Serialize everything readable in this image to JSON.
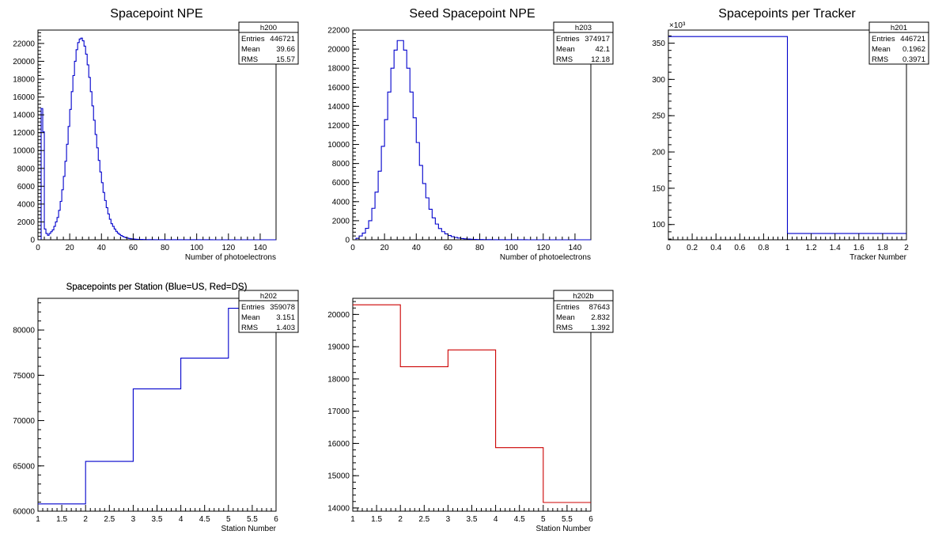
{
  "chart_data": [
    {
      "id": "h200",
      "type": "histogram",
      "title": "Spacepoint NPE",
      "xlabel": "Number of photoelectrons",
      "ylabel": "",
      "xlim": [
        0,
        150
      ],
      "ylim": [
        0,
        23500
      ],
      "xticks": [
        0,
        20,
        40,
        60,
        80,
        100,
        120,
        140
      ],
      "yticks": [
        0,
        2000,
        4000,
        6000,
        8000,
        10000,
        12000,
        14000,
        16000,
        18000,
        20000,
        22000
      ],
      "exponent": "",
      "color": "#0000cc",
      "bins": {
        "edges_start": 0,
        "bin_width": 1,
        "values": [
          0,
          0,
          14700,
          12100,
          1200,
          700,
          500,
          700,
          900,
          1100,
          1500,
          2000,
          2500,
          3300,
          4300,
          5600,
          7100,
          8800,
          10700,
          12700,
          14600,
          16600,
          18400,
          20000,
          21300,
          22100,
          22500,
          22600,
          22300,
          21700,
          20800,
          19600,
          18200,
          16600,
          15000,
          13400,
          11800,
          10300,
          8900,
          7600,
          6400,
          5300,
          4400,
          3600,
          2900,
          2300,
          1800,
          1500,
          1200,
          950,
          750,
          600,
          480,
          380,
          300,
          240,
          190,
          150,
          120,
          100,
          80,
          65,
          55,
          45,
          40,
          35,
          30,
          26,
          22,
          20,
          18,
          16,
          14,
          12,
          11,
          10,
          9,
          8,
          7,
          6,
          6,
          5,
          5,
          4,
          4,
          4,
          3,
          3,
          3,
          3,
          3,
          3,
          2,
          2,
          2,
          2,
          2,
          2,
          2,
          2,
          2,
          2,
          2,
          2,
          2,
          2,
          2,
          2,
          2,
          2,
          1,
          1,
          1,
          1,
          1,
          1,
          1,
          1,
          1,
          1,
          1,
          1,
          1,
          1,
          1,
          1,
          1,
          1,
          1,
          1,
          1,
          1,
          1,
          1,
          1,
          1,
          1,
          1,
          1,
          1,
          1,
          1,
          1,
          1,
          1,
          1,
          1,
          1,
          1,
          1
        ]
      },
      "stats": {
        "name": "h200",
        "entries_label": "Entries",
        "entries": "446721",
        "mean_label": "Mean",
        "mean": "39.66",
        "rms_label": "RMS",
        "rms": "15.57"
      }
    },
    {
      "id": "h203",
      "type": "histogram",
      "title": "Seed Spacepoint NPE",
      "xlabel": "Number of photoelectrons",
      "ylabel": "",
      "xlim": [
        0,
        150
      ],
      "ylim": [
        0,
        22000
      ],
      "xticks": [
        0,
        20,
        40,
        60,
        80,
        100,
        120,
        140
      ],
      "yticks": [
        0,
        2000,
        4000,
        6000,
        8000,
        10000,
        12000,
        14000,
        16000,
        18000,
        20000,
        22000
      ],
      "exponent": "",
      "color": "#0000cc",
      "bins": {
        "edges_start": 0,
        "bin_width": 2,
        "values": [
          0,
          150,
          400,
          700,
          1200,
          2000,
          3300,
          5000,
          7200,
          9800,
          12600,
          15500,
          18000,
          19900,
          20900,
          20900,
          19900,
          18000,
          15500,
          12800,
          10200,
          7800,
          5900,
          4400,
          3200,
          2300,
          1650,
          1180,
          850,
          620,
          450,
          330,
          240,
          180,
          130,
          100,
          75,
          55,
          42,
          32,
          25,
          20,
          15,
          12,
          10,
          8,
          6,
          5,
          4,
          3,
          3,
          2,
          2,
          2,
          2,
          1,
          1,
          1,
          1,
          1,
          1,
          1,
          1,
          1,
          1,
          1,
          1,
          1,
          1,
          1,
          1,
          1,
          1,
          1,
          1
        ]
      },
      "stats": {
        "name": "h203",
        "entries_label": "Entries",
        "entries": "374917",
        "mean_label": "Mean",
        "mean": "42.1",
        "rms_label": "RMS",
        "rms": "12.18"
      }
    },
    {
      "id": "h201",
      "type": "histogram",
      "title": "Spacepoints per Tracker",
      "xlabel": "Tracker Number",
      "ylabel": "",
      "xlim": [
        0,
        2
      ],
      "ylim": [
        79,
        368
      ],
      "xticks": [
        0,
        0.2,
        0.4,
        0.6,
        0.8,
        1,
        1.2,
        1.4,
        1.6,
        1.8,
        2
      ],
      "yticks": [
        100,
        150,
        200,
        250,
        300,
        350
      ],
      "exponent": "×10³",
      "color": "#0000cc",
      "bins": {
        "edges_start": 0,
        "bin_width": 1,
        "values": [
          359.078,
          87.643
        ]
      },
      "stats": {
        "name": "h201",
        "entries_label": "Entries",
        "entries": "446721",
        "mean_label": "Mean",
        "mean": "0.1962",
        "rms_label": "RMS",
        "rms": "0.3971"
      }
    },
    {
      "id": "h202",
      "type": "histogram",
      "title": "Spacepoints per Station (Blue=US, Red=DS)",
      "xlabel": "Station Number",
      "ylabel": "",
      "xlim": [
        1,
        6
      ],
      "ylim": [
        60000,
        83500
      ],
      "xticks": [
        1,
        1.5,
        2,
        2.5,
        3,
        3.5,
        4,
        4.5,
        5,
        5.5,
        6
      ],
      "yticks": [
        60000,
        65000,
        70000,
        75000,
        80000
      ],
      "exponent": "",
      "color": "#0000cc",
      "bins": {
        "edges_start": 1,
        "bin_width": 1,
        "values": [
          60800,
          65500,
          73500,
          76900,
          82400
        ]
      },
      "stats": {
        "name": "h202",
        "entries_label": "Entries",
        "entries": "359078",
        "mean_label": "Mean",
        "mean": "3.151",
        "rms_label": "RMS",
        "rms": "1.403"
      }
    },
    {
      "id": "h202b",
      "type": "histogram",
      "title": "Spacepoints per Station (Blue=US, Red=DS)",
      "xlabel": "Station Number",
      "ylabel": "",
      "xlim": [
        1,
        6
      ],
      "ylim": [
        13900,
        20500
      ],
      "xticks": [
        1,
        1.5,
        2,
        2.5,
        3,
        3.5,
        4,
        4.5,
        5,
        5.5,
        6
      ],
      "yticks": [
        14000,
        15000,
        16000,
        17000,
        18000,
        19000,
        20000
      ],
      "exponent": "",
      "color": "#cc0000",
      "bins": {
        "edges_start": 1,
        "bin_width": 1,
        "values": [
          20300,
          18380,
          18900,
          15870,
          14170
        ]
      },
      "stats": {
        "name": "h202b",
        "entries_label": "Entries",
        "entries": "87643",
        "mean_label": "Mean",
        "mean": "2.832",
        "rms_label": "RMS",
        "rms": "1.392"
      }
    }
  ]
}
